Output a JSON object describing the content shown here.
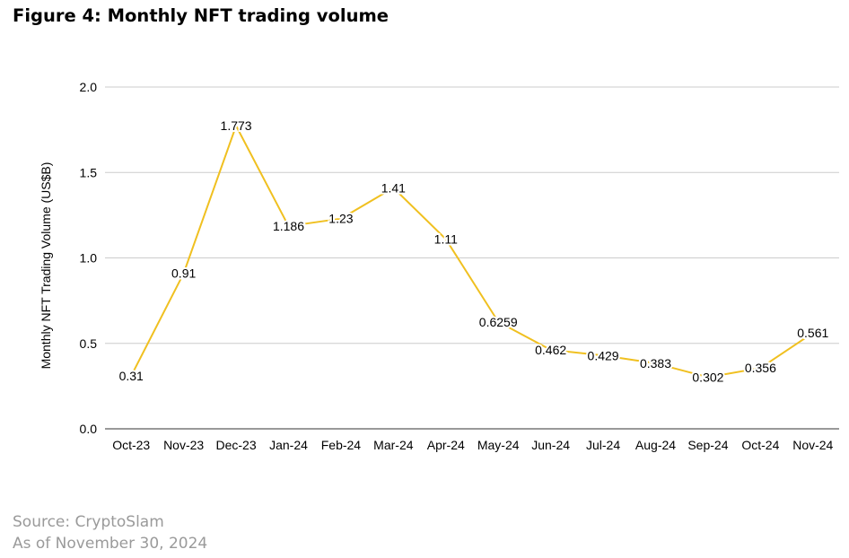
{
  "figure": {
    "title": "Figure 4: Monthly NFT trading volume",
    "source": "Source: CryptoSlam",
    "as_of": "As of November 30, 2024"
  },
  "colors": {
    "line": "#f0c020",
    "grid": "#cccccc",
    "text": "#000000",
    "footer": "#9a9a9a"
  },
  "chart_data": {
    "type": "line",
    "title": "",
    "xlabel": "",
    "ylabel": "Monthly NFT Trading Volume (US$B)",
    "ylim": [
      0,
      2.0
    ],
    "yticks": [
      "0.0",
      "0.5",
      "1.0",
      "1.5",
      "2.0"
    ],
    "grid": true,
    "categories": [
      "Oct-23",
      "Nov-23",
      "Dec-23",
      "Jan-24",
      "Feb-24",
      "Mar-24",
      "Apr-24",
      "May-24",
      "Jun-24",
      "Jul-24",
      "Aug-24",
      "Sep-24",
      "Oct-24",
      "Nov-24"
    ],
    "series": [
      {
        "values": [
          0.31,
          0.91,
          1.773,
          1.186,
          1.23,
          1.41,
          1.11,
          0.6259,
          0.462,
          0.429,
          0.383,
          0.302,
          0.356,
          0.561
        ],
        "labels": [
          "0.31",
          "0.91",
          "1.773",
          "1.186",
          "1.23",
          "1.41",
          "1.11",
          "0.6259",
          "0.462",
          "0.429",
          "0.383",
          "0.302",
          "0.356",
          "0.561"
        ]
      }
    ]
  }
}
